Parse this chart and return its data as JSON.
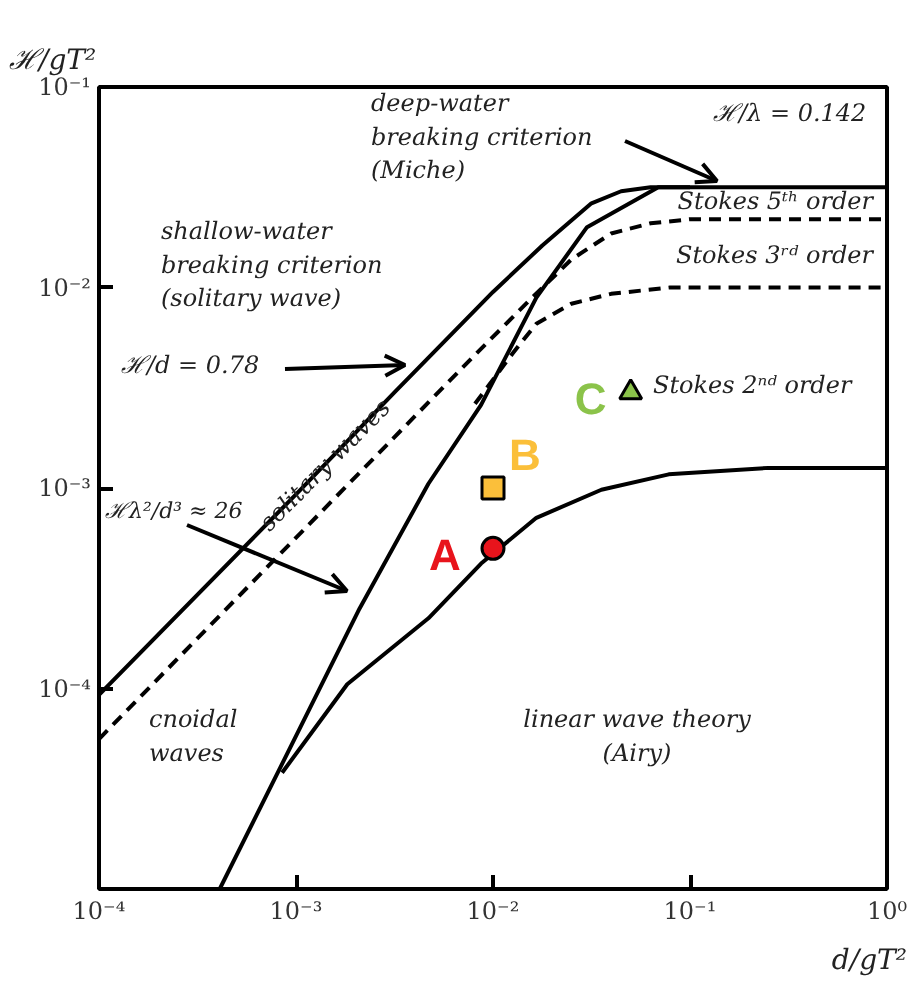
{
  "chart_data": {
    "type": "line",
    "xlabel": "d/gT²",
    "ylabel": "ℋ/gT²",
    "log": "xy",
    "grid": false,
    "xlim": [
      0.0001,
      1
    ],
    "ylim": [
      1e-05,
      0.1
    ],
    "xticks": [
      {
        "value": 0.0001,
        "label": "10⁻⁴"
      },
      {
        "value": 0.001,
        "label": "10⁻³"
      },
      {
        "value": 0.01,
        "label": "10⁻²"
      },
      {
        "value": 0.1,
        "label": "10⁻¹"
      },
      {
        "value": 1,
        "label": "10⁰"
      }
    ],
    "yticks": [
      {
        "value": 0.0001,
        "label": "10⁻⁴"
      },
      {
        "value": 0.001,
        "label": "10⁻³"
      },
      {
        "value": 0.01,
        "label": "10⁻²"
      },
      {
        "value": 0.1,
        "label": "10⁻¹"
      }
    ],
    "series": [
      {
        "line_style": "solid",
        "color": "#000000",
        "x": [
          0.0001,
          0.001,
          0.00316,
          0.01,
          0.0178,
          0.0316,
          0.0447,
          0.0631,
          0.1,
          1
        ],
        "values": [
          9.3e-05,
          0.00093,
          0.003,
          0.0095,
          0.0162,
          0.0263,
          0.0302,
          0.0316,
          0.0316,
          0.0316
        ]
      },
      {
        "line_style": "solid",
        "color": "#000000",
        "x": [
          0.00041,
          0.0021,
          0.0047,
          0.0087,
          0.0166,
          0.03,
          0.069,
          0.1
        ],
        "values": [
          1e-05,
          0.00025,
          0.00105,
          0.0026,
          0.0089,
          0.02,
          0.0316,
          0.0316
        ]
      },
      {
        "line_style": "dashed",
        "color": "#000000",
        "x": [
          0.0001,
          0.0079,
          0.0158,
          0.025,
          0.0398,
          0.0631,
          0.1,
          1
        ],
        "values": [
          5.6e-05,
          0.0045,
          0.0089,
          0.0138,
          0.0186,
          0.0209,
          0.0219,
          0.0219
        ]
      },
      {
        "line_style": "dashed",
        "color": "#000000",
        "x": [
          0.0081,
          0.0126,
          0.0166,
          0.025,
          0.0398,
          0.079,
          1
        ],
        "values": [
          0.00263,
          0.0047,
          0.0066,
          0.0083,
          0.0093,
          0.01,
          0.01
        ]
      },
      {
        "line_style": "solid",
        "color": "#000000",
        "x": [
          0.00085,
          0.00182,
          0.0047,
          0.0087,
          0.0166,
          0.0355,
          0.078,
          0.25,
          1
        ],
        "values": [
          3.8e-05,
          0.000105,
          0.000224,
          0.00042,
          0.00071,
          0.00098,
          0.00117,
          0.00126,
          0.00126
        ]
      },
      {
        "type": "scatter",
        "marker": "circle",
        "name": "A",
        "color": "#e8141c",
        "x": [
          0.01
        ],
        "values": [
          0.0005
        ]
      },
      {
        "type": "scatter",
        "marker": "square",
        "name": "B",
        "color": "#fbbf3a",
        "x": [
          0.01
        ],
        "values": [
          0.001
        ]
      },
      {
        "type": "scatter",
        "marker": "triangle",
        "name": "C",
        "color": "#8bc34a",
        "x": [
          0.05
        ],
        "values": [
          0.003
        ]
      }
    ],
    "annotations": [
      "deep-water\nbreaking criterion\n(Miche)",
      "ℋ/λ = 0.142",
      "shallow-water\nbreaking criterion\n(solitary wave)",
      "ℋ/d = 0.78",
      "ℋλ²/d³ ≈ 26",
      "solitary waves",
      "Stokes 5ᵗʰ order",
      "Stokes 3ʳᵈ order",
      "Stokes 2ⁿᵈ order",
      "cnoidal\nwaves",
      "linear wave theory\n(Airy)"
    ]
  }
}
